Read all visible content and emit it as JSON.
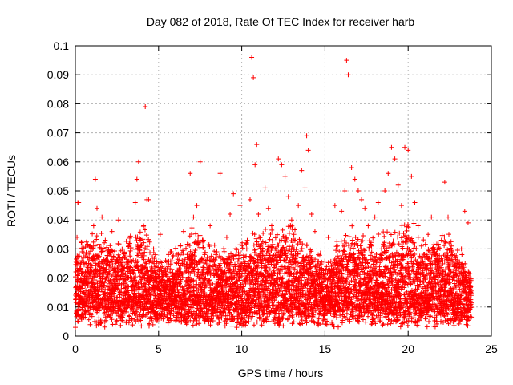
{
  "chart_data": {
    "type": "scatter",
    "title": "Day 082 of 2018, Rate Of TEC Index for receiver harb",
    "xlabel": "GPS time / hours",
    "ylabel": "ROTI / TECUs",
    "xlim": [
      0,
      25
    ],
    "ylim": [
      0,
      0.1
    ],
    "xticks": [
      0,
      5,
      10,
      15,
      20,
      25
    ],
    "xtick_labels": [
      "0",
      "5",
      "10",
      "15",
      "20",
      "25"
    ],
    "yticks": [
      0,
      0.01,
      0.02,
      0.03,
      0.04,
      0.05,
      0.06,
      0.07,
      0.08,
      0.09,
      0.1
    ],
    "ytick_labels": [
      "0",
      "0.01",
      "0.02",
      "0.03",
      "0.04",
      "0.05",
      "0.06",
      "0.07",
      "0.08",
      "0.09",
      "0.1"
    ],
    "grid": true,
    "legend": "none",
    "marker": "plus",
    "color": "#ff0000",
    "series": [
      {
        "points": [
          [
            0.0,
            0.003
          ],
          [
            0.05,
            0.013
          ],
          [
            0.1,
            0.034
          ],
          [
            0.15,
            0.046
          ],
          [
            0.2,
            0.046
          ],
          [
            0.3,
            0.019
          ],
          [
            0.4,
            0.029
          ],
          [
            0.5,
            0.012
          ],
          [
            0.6,
            0.022
          ],
          [
            0.7,
            0.009
          ],
          [
            0.8,
            0.025
          ],
          [
            0.9,
            0.031
          ],
          [
            1.0,
            0.014
          ],
          [
            1.1,
            0.038
          ],
          [
            1.2,
            0.054
          ],
          [
            1.3,
            0.044
          ],
          [
            1.4,
            0.027
          ],
          [
            1.5,
            0.019
          ],
          [
            1.6,
            0.041
          ],
          [
            1.7,
            0.022
          ],
          [
            1.8,
            0.033
          ],
          [
            1.9,
            0.011
          ],
          [
            2.0,
            0.029
          ],
          [
            2.2,
            0.036
          ],
          [
            2.4,
            0.018
          ],
          [
            2.6,
            0.04
          ],
          [
            2.8,
            0.024
          ],
          [
            3.0,
            0.013
          ],
          [
            3.2,
            0.031
          ],
          [
            3.4,
            0.02
          ],
          [
            3.6,
            0.046
          ],
          [
            3.7,
            0.054
          ],
          [
            3.8,
            0.06
          ],
          [
            3.9,
            0.033
          ],
          [
            4.0,
            0.027
          ],
          [
            4.1,
            0.038
          ],
          [
            4.2,
            0.079
          ],
          [
            4.3,
            0.047
          ],
          [
            4.4,
            0.047
          ],
          [
            4.5,
            0.019
          ],
          [
            4.7,
            0.03
          ],
          [
            4.9,
            0.011
          ],
          [
            5.1,
            0.035
          ],
          [
            5.3,
            0.022
          ],
          [
            5.5,
            0.017
          ],
          [
            5.7,
            0.029
          ],
          [
            5.9,
            0.012
          ],
          [
            6.1,
            0.025
          ],
          [
            6.3,
            0.031
          ],
          [
            6.5,
            0.036
          ],
          [
            6.7,
            0.019
          ],
          [
            6.9,
            0.056
          ],
          [
            7.1,
            0.041
          ],
          [
            7.3,
            0.045
          ],
          [
            7.5,
            0.06
          ],
          [
            7.7,
            0.033
          ],
          [
            7.9,
            0.026
          ],
          [
            8.1,
            0.038
          ],
          [
            8.3,
            0.015
          ],
          [
            8.5,
            0.029
          ],
          [
            8.7,
            0.056
          ],
          [
            8.9,
            0.021
          ],
          [
            9.1,
            0.034
          ],
          [
            9.3,
            0.042
          ],
          [
            9.5,
            0.049
          ],
          [
            9.7,
            0.003
          ],
          [
            9.9,
            0.045
          ],
          [
            10.1,
            0.017
          ],
          [
            10.3,
            0.03
          ],
          [
            10.5,
            0.047
          ],
          [
            10.6,
            0.096
          ],
          [
            10.7,
            0.089
          ],
          [
            10.8,
            0.059
          ],
          [
            10.9,
            0.066
          ],
          [
            11.0,
            0.042
          ],
          [
            11.2,
            0.025
          ],
          [
            11.4,
            0.051
          ],
          [
            11.6,
            0.044
          ],
          [
            11.8,
            0.038
          ],
          [
            12.0,
            0.03
          ],
          [
            12.2,
            0.061
          ],
          [
            12.4,
            0.059
          ],
          [
            12.6,
            0.055
          ],
          [
            12.8,
            0.048
          ],
          [
            13.0,
            0.04
          ],
          [
            13.2,
            0.033
          ],
          [
            13.4,
            0.045
          ],
          [
            13.6,
            0.057
          ],
          [
            13.8,
            0.051
          ],
          [
            13.9,
            0.069
          ],
          [
            14.0,
            0.064
          ],
          [
            14.2,
            0.042
          ],
          [
            14.4,
            0.036
          ],
          [
            14.6,
            0.028
          ],
          [
            14.8,
            0.022
          ],
          [
            15.0,
            0.013
          ],
          [
            15.2,
            0.034
          ],
          [
            15.4,
            0.022
          ],
          [
            15.6,
            0.045
          ],
          [
            15.8,
            0.02
          ],
          [
            16.0,
            0.043
          ],
          [
            16.2,
            0.05
          ],
          [
            16.3,
            0.095
          ],
          [
            16.4,
            0.09
          ],
          [
            16.6,
            0.058
          ],
          [
            16.8,
            0.054
          ],
          [
            17.0,
            0.05
          ],
          [
            17.2,
            0.047
          ],
          [
            17.4,
            0.044
          ],
          [
            17.6,
            0.038
          ],
          [
            17.8,
            0.031
          ],
          [
            18.0,
            0.041
          ],
          [
            18.2,
            0.046
          ],
          [
            18.4,
            0.03
          ],
          [
            18.6,
            0.05
          ],
          [
            18.8,
            0.056
          ],
          [
            19.0,
            0.065
          ],
          [
            19.2,
            0.061
          ],
          [
            19.4,
            0.052
          ],
          [
            19.6,
            0.045
          ],
          [
            19.8,
            0.065
          ],
          [
            20.0,
            0.064
          ],
          [
            20.2,
            0.055
          ],
          [
            20.4,
            0.046
          ],
          [
            20.6,
            0.038
          ],
          [
            20.8,
            0.031
          ],
          [
            21.0,
            0.027
          ],
          [
            21.2,
            0.035
          ],
          [
            21.4,
            0.041
          ],
          [
            21.6,
            0.029
          ],
          [
            21.8,
            0.023
          ],
          [
            22.0,
            0.033
          ],
          [
            22.2,
            0.053
          ],
          [
            22.4,
            0.041
          ],
          [
            22.6,
            0.031
          ],
          [
            22.8,
            0.024
          ],
          [
            23.0,
            0.019
          ],
          [
            23.2,
            0.03
          ],
          [
            23.4,
            0.043
          ],
          [
            23.6,
            0.039
          ],
          [
            23.7,
            0.016
          ]
        ]
      }
    ],
    "density_band": {
      "description": "dense cloud of points between baseline and upper envelope",
      "x_range": [
        0,
        23.8
      ],
      "baseline_range": [
        0.003,
        0.012
      ],
      "envelope": [
        [
          0.0,
          0.028
        ],
        [
          1.0,
          0.034
        ],
        [
          2.0,
          0.03
        ],
        [
          3.0,
          0.03
        ],
        [
          4.0,
          0.035
        ],
        [
          5.0,
          0.025
        ],
        [
          6.0,
          0.027
        ],
        [
          7.0,
          0.034
        ],
        [
          8.0,
          0.03
        ],
        [
          9.0,
          0.027
        ],
        [
          10.0,
          0.03
        ],
        [
          11.0,
          0.034
        ],
        [
          12.0,
          0.036
        ],
        [
          13.0,
          0.035
        ],
        [
          14.0,
          0.03
        ],
        [
          15.0,
          0.023
        ],
        [
          16.0,
          0.033
        ],
        [
          17.0,
          0.034
        ],
        [
          18.0,
          0.031
        ],
        [
          19.0,
          0.034
        ],
        [
          20.0,
          0.036
        ],
        [
          21.0,
          0.03
        ],
        [
          22.0,
          0.032
        ],
        [
          23.0,
          0.03
        ],
        [
          23.8,
          0.02
        ]
      ]
    }
  }
}
